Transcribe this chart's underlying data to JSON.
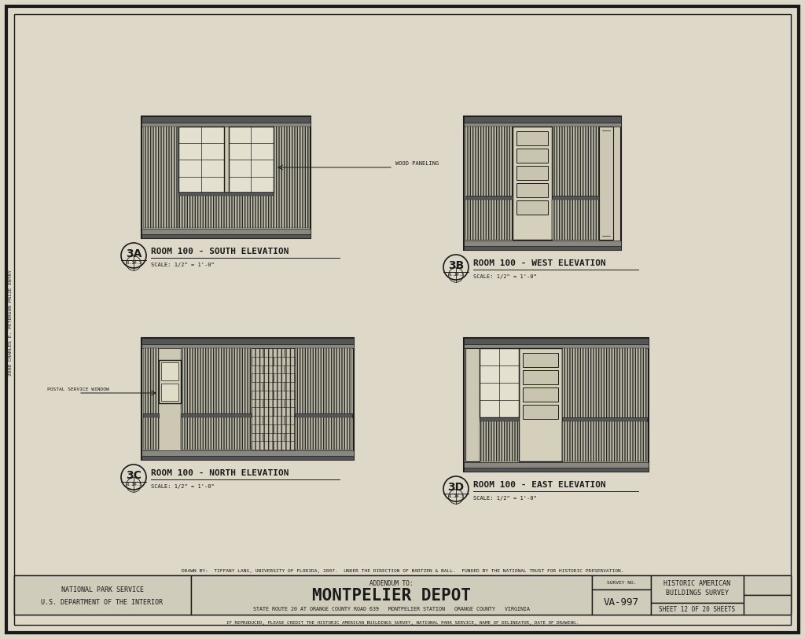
{
  "bg_color": "#ddd8c8",
  "paper_color": "#d8d2c0",
  "line_color": "#1a1a1a",
  "hatch_color": "#2a2a2a",
  "title": "MONTPELIER DEPOT",
  "subtitle": "ADDENDUM TO:",
  "agency_line1": "NATIONAL PARK SERVICE",
  "agency_line2": "U.S. DEPARTMENT OF THE INTERIOR",
  "location": "STATE ROUTE 20 AT ORANGE COUNTY ROAD 639   MONTPELIER STATION   ORANGE COUNTY   VIRGINIA",
  "survey_no": "VA-997",
  "sheet": "SHEET 12 OF 20 SHEETS",
  "habs_line1": "HISTORIC AMERICAN",
  "habs_line2": "BUILDINGS SURVEY",
  "drawn_by": "DRAWN BY:  TIFFANY LANG, UNIVERSITY OF FLORIDA, 2007.  UNDER THE DIRECTION OF BARTZEN & BALL.  FUNDED BY THE NATIONAL TRUST FOR HISTORIC PRESERVATION.",
  "credit": "IF REPRODUCED, PLEASE CREDIT THE HISTORIC AMERICAN BUILDINGS SURVEY, NATIONAL PARK SERVICE, NAME OF DELINEATOR, DATE OF DRAWING.",
  "elev_3a_title": "ROOM 100 - SOUTH ELEVATION",
  "elev_3a_scale": "SCALE: 1/2\" = 1'-0\"",
  "elev_3b_title": "ROOM 100 - WEST ELEVATION",
  "elev_3b_scale": "SCALE: 1/2\" = 1'-0\"",
  "elev_3c_title": "ROOM 100 - NORTH ELEVATION",
  "elev_3c_scale": "SCALE: 1/2\" = 1'-0\"",
  "elev_3d_title": "ROOM 100 - EAST ELEVATION",
  "elev_3d_scale": "SCALE: 1/2\" = 1'-0\"",
  "wood_paneling_label": "WOOD PANELING",
  "postal_service_label": "POSTAL SERVICE WINDOW",
  "side_text": "2008 CHARLES E. PETERSON PRIZE ENTRY"
}
